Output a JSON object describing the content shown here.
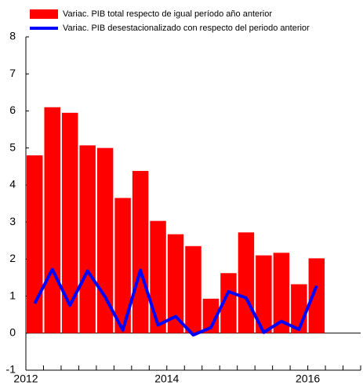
{
  "chart_data": {
    "type": "bar_line",
    "categories": [
      "2012",
      null,
      null,
      null,
      null,
      null,
      null,
      null,
      "2014",
      null,
      null,
      null,
      null,
      null,
      null,
      null,
      "2016",
      null,
      null
    ],
    "series": [
      {
        "name": "Variac. PIB total respecto de igual período año anterior",
        "color": "#ff0000",
        "type": "bar",
        "values": [
          4.8,
          6.1,
          5.95,
          5.07,
          5.0,
          3.65,
          4.38,
          3.03,
          2.67,
          2.35,
          0.93,
          1.62,
          2.72,
          2.1,
          2.17,
          1.32,
          2.02,
          null,
          null
        ]
      },
      {
        "name": "Variac. PIB desestacionalizado con respecto del periodo anterior",
        "color": "#0000ff",
        "type": "line",
        "values": [
          0.8,
          1.72,
          0.75,
          1.68,
          0.98,
          0.08,
          1.7,
          0.22,
          0.45,
          -0.05,
          0.15,
          1.12,
          0.95,
          0.02,
          0.32,
          0.1,
          1.28,
          null,
          null
        ]
      }
    ],
    "ylim": [
      -1,
      8
    ],
    "yticks": [
      -1,
      0,
      1,
      2,
      3,
      4,
      5,
      6,
      7,
      8
    ]
  }
}
